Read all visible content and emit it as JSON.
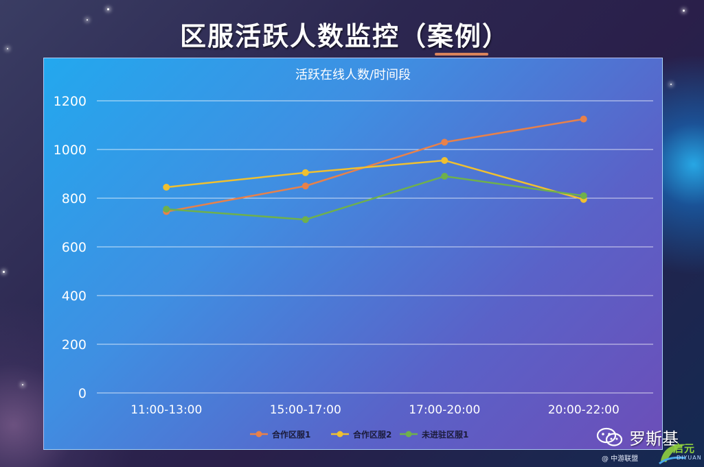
{
  "header": {
    "title": "区服活跃人数监控（案例）"
  },
  "chart_data": {
    "type": "line",
    "title": "活跃在线人数/时间段",
    "xlabel": "",
    "ylabel": "",
    "categories": [
      "11:00-13:00",
      "15:00-17:00",
      "17:00-20:00",
      "20:00-22:00"
    ],
    "ylim": [
      0,
      1200
    ],
    "yticks": [
      0,
      200,
      400,
      600,
      800,
      1000,
      1200
    ],
    "grid": true,
    "legend_position": "bottom",
    "series": [
      {
        "name": "合作区服1",
        "color": "#e8814a",
        "values": [
          745,
          850,
          1030,
          1125
        ]
      },
      {
        "name": "合作区服2",
        "color": "#f0c030",
        "values": [
          845,
          905,
          955,
          795
        ]
      },
      {
        "name": "未进驻区服1",
        "color": "#6fb04c",
        "values": [
          755,
          712,
          890,
          810
        ]
      }
    ]
  },
  "watermark": {
    "author": "罗斯基",
    "logo_text": "启元",
    "logo_sub": "DIYUAN",
    "source": "@ 中游联盟",
    "icon": "wechat-icon"
  }
}
